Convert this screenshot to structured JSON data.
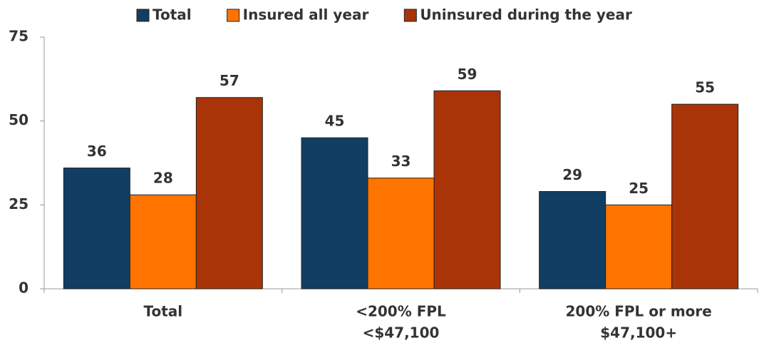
{
  "chart_data": {
    "type": "bar",
    "categories": [
      [
        "Total"
      ],
      [
        "<200% FPL",
        "<$47,100"
      ],
      [
        "200% FPL or more",
        "$47,100+"
      ]
    ],
    "series": [
      {
        "name": "Total",
        "color": "#133e63",
        "values": [
          36,
          45,
          29
        ]
      },
      {
        "name": "Insured all year",
        "color": "#ff7400",
        "values": [
          28,
          33,
          25
        ]
      },
      {
        "name": "Uninsured during the year",
        "color": "#a93408",
        "values": [
          57,
          59,
          55
        ]
      }
    ],
    "ylim": [
      0,
      75
    ],
    "yticks": [
      0,
      25,
      50,
      75
    ],
    "legend": "top"
  }
}
